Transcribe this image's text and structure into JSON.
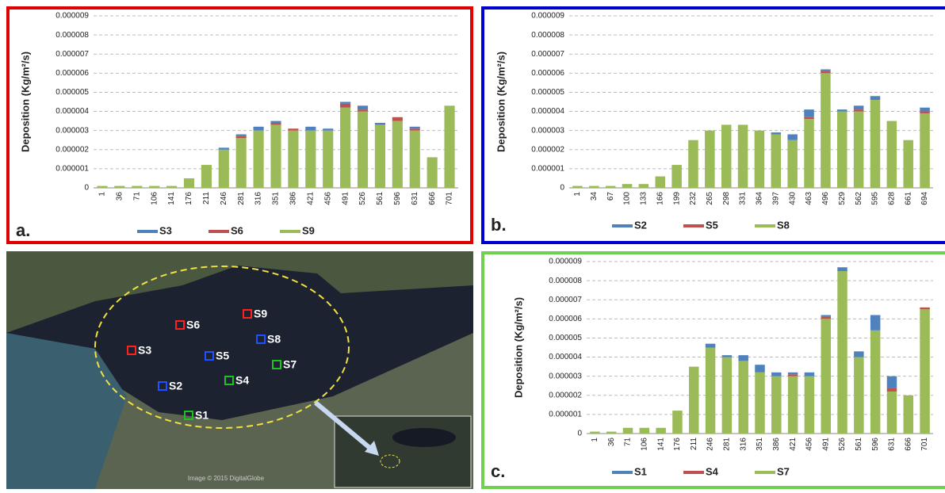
{
  "chart_data": [
    {
      "type": "bar",
      "label": "a.",
      "ylabel": "Deposition (Kg/m²/s)",
      "frame_color": "#e00000",
      "categories": [
        1,
        36,
        71,
        106,
        141,
        176,
        211,
        246,
        281,
        316,
        351,
        386,
        421,
        456,
        491,
        526,
        561,
        596,
        631,
        666,
        701
      ],
      "series": [
        {
          "name": "S3",
          "color": "#4f81bd",
          "values": [
            0,
            0,
            0,
            0,
            0,
            0,
            0,
            1e-07,
            1e-07,
            2e-07,
            1e-07,
            0,
            2e-07,
            1e-07,
            1e-07,
            2e-07,
            1e-07,
            0,
            1e-07,
            0,
            0
          ]
        },
        {
          "name": "S6",
          "color": "#c0504d",
          "values": [
            0,
            0,
            0,
            0,
            0,
            0,
            0,
            0,
            1e-07,
            0,
            1e-07,
            1e-07,
            0,
            0,
            2e-07,
            1e-07,
            0,
            2e-07,
            1e-07,
            0,
            0
          ]
        },
        {
          "name": "S9",
          "color": "#9bbb59",
          "values": [
            1e-07,
            1e-07,
            1e-07,
            1e-07,
            1e-07,
            5e-07,
            1.2e-06,
            2e-06,
            2.6e-06,
            3e-06,
            3.3e-06,
            3e-06,
            3e-06,
            3e-06,
            4.2e-06,
            4e-06,
            3.3e-06,
            3.5e-06,
            3e-06,
            1.6e-06,
            4.3e-06
          ]
        }
      ],
      "ylim": [
        0,
        9e-06
      ],
      "yticks": [
        0,
        1e-06,
        2e-06,
        3e-06,
        4e-06,
        5e-06,
        6e-06,
        7e-06,
        8e-06,
        9e-06
      ],
      "grid": true
    },
    {
      "type": "bar",
      "label": "b.",
      "ylabel": "Deposition (Kg/m²/s)",
      "frame_color": "#0000d0",
      "categories": [
        1,
        34,
        67,
        100,
        133,
        166,
        199,
        232,
        265,
        298,
        331,
        364,
        397,
        430,
        463,
        496,
        529,
        562,
        595,
        628,
        661,
        694
      ],
      "series": [
        {
          "name": "S2",
          "color": "#4f81bd",
          "values": [
            0,
            0,
            0,
            0,
            0,
            0,
            0,
            0,
            0,
            0,
            0,
            0,
            1e-07,
            3e-07,
            4e-07,
            1e-07,
            1e-07,
            2e-07,
            2e-07,
            0,
            0,
            2e-07
          ]
        },
        {
          "name": "S5",
          "color": "#c0504d",
          "values": [
            0,
            0,
            0,
            0,
            0,
            0,
            0,
            0,
            0,
            0,
            0,
            0,
            0,
            0,
            1e-07,
            1e-07,
            0,
            1e-07,
            0,
            0,
            0,
            1e-07
          ]
        },
        {
          "name": "S8",
          "color": "#9bbb59",
          "values": [
            1e-07,
            1e-07,
            1e-07,
            2e-07,
            2e-07,
            6e-07,
            1.2e-06,
            2.5e-06,
            3e-06,
            3.3e-06,
            3.3e-06,
            3e-06,
            2.8e-06,
            2.5e-06,
            3.6e-06,
            6e-06,
            4e-06,
            4e-06,
            4.6e-06,
            3.5e-06,
            2.5e-06,
            3.9e-06
          ]
        }
      ],
      "ylim": [
        0,
        9e-06
      ],
      "yticks": [
        0,
        1e-06,
        2e-06,
        3e-06,
        4e-06,
        5e-06,
        6e-06,
        7e-06,
        8e-06,
        9e-06
      ],
      "grid": true
    },
    {
      "type": "bar",
      "label": "c.",
      "ylabel": "Deposition (Kg/m²/s)",
      "frame_color": "#70d050",
      "categories": [
        1,
        36,
        71,
        106,
        141,
        176,
        211,
        246,
        281,
        316,
        351,
        386,
        421,
        456,
        491,
        526,
        561,
        596,
        631,
        666,
        701
      ],
      "series": [
        {
          "name": "S1",
          "color": "#4f81bd",
          "values": [
            0,
            0,
            0,
            0,
            0,
            0,
            0,
            2e-07,
            1e-07,
            3e-07,
            4e-07,
            2e-07,
            1e-07,
            2e-07,
            1e-07,
            2e-07,
            3e-07,
            8e-07,
            6e-07,
            0,
            0
          ]
        },
        {
          "name": "S4",
          "color": "#c0504d",
          "values": [
            0,
            0,
            0,
            0,
            0,
            0,
            0,
            0,
            0,
            0,
            0,
            0,
            1e-07,
            0,
            1e-07,
            0,
            0,
            0,
            2e-07,
            0,
            1e-07
          ]
        },
        {
          "name": "S7",
          "color": "#9bbb59",
          "values": [
            1e-07,
            1e-07,
            3e-07,
            3e-07,
            3e-07,
            1.2e-06,
            3.5e-06,
            4.5e-06,
            4e-06,
            3.8e-06,
            3.2e-06,
            3e-06,
            3e-06,
            3e-06,
            6e-06,
            8.5e-06,
            4e-06,
            5.4e-06,
            2.2e-06,
            2e-06,
            6.5e-06
          ]
        }
      ],
      "ylim": [
        0,
        9e-06
      ],
      "yticks": [
        0,
        1e-06,
        2e-06,
        3e-06,
        4e-06,
        5e-06,
        6e-06,
        7e-06,
        8e-06,
        9e-06
      ],
      "grid": true
    }
  ],
  "map": {
    "credit": "Image © 2015 DigitalGlobe",
    "stations": [
      {
        "name": "S1",
        "color": "#20c020"
      },
      {
        "name": "S2",
        "color": "#2050ff"
      },
      {
        "name": "S3",
        "color": "#ff2020"
      },
      {
        "name": "S4",
        "color": "#20c020"
      },
      {
        "name": "S5",
        "color": "#2050ff"
      },
      {
        "name": "S6",
        "color": "#ff2020"
      },
      {
        "name": "S7",
        "color": "#20c020"
      },
      {
        "name": "S8",
        "color": "#2050ff"
      },
      {
        "name": "S9",
        "color": "#ff2020"
      }
    ]
  }
}
